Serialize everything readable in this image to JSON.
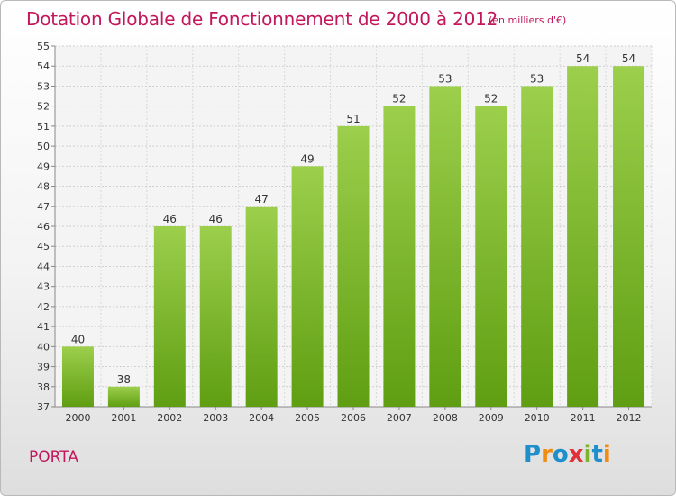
{
  "header": {
    "title": "Dotation Globale de Fonctionnement de 2000 à 2012",
    "unit": "(en milliers d'€)"
  },
  "footer": {
    "commune": "PORTA",
    "logo": "Proxiti"
  },
  "colors": {
    "title": "#c2185b",
    "bar_light": "#9ccf4c",
    "bar_dark": "#5f9e12",
    "logo_letters": [
      "#1f8fcc",
      "#f08c10",
      "#1f8fcc",
      "#e0313a",
      "#7ab52a",
      "#1f8fcc",
      "#f08c10"
    ]
  },
  "chart_data": {
    "type": "bar",
    "categories": [
      "2000",
      "2001",
      "2002",
      "2003",
      "2004",
      "2005",
      "2006",
      "2007",
      "2008",
      "2009",
      "2010",
      "2011",
      "2012"
    ],
    "values": [
      40,
      38,
      46,
      46,
      47,
      49,
      51,
      52,
      53,
      52,
      53,
      54,
      54
    ],
    "data_labels": [
      "40",
      "38",
      "46",
      "46",
      "47",
      "49",
      "51",
      "52",
      "53",
      "52",
      "53",
      "54",
      "54"
    ],
    "y_ticks": [
      "37",
      "38",
      "39",
      "40",
      "41",
      "42",
      "43",
      "44",
      "45",
      "46",
      "47",
      "48",
      "49",
      "50",
      "51",
      "52",
      "53",
      "54",
      "55"
    ],
    "ylim": [
      37,
      55
    ],
    "grid": true,
    "legend": "none"
  }
}
